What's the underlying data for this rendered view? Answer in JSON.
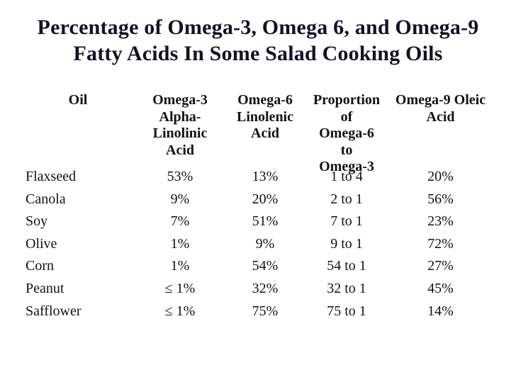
{
  "slide": {
    "title": "Percentage of Omega-3, Omega 6, and Omega-9\nFatty Acids In Some Salad Cooking Oils",
    "title_color": "#121226",
    "background_color": "#ffffff",
    "text_color": "#121212"
  },
  "table": {
    "headers": [
      {
        "label": "Oil"
      },
      {
        "label": "Omega-3\nAlpha-\nLinolinic\nAcid"
      },
      {
        "label": "Omega-6\nLinolenic\nAcid"
      },
      {
        "label": "Proportion\nof\nOmega-6\nto\nOmega-3"
      },
      {
        "label": "Omega-9 Oleic\nAcid"
      }
    ],
    "rows": [
      {
        "oil": "Flaxseed",
        "omega3": "53%",
        "omega6": "13%",
        "proportion": "1 to 4",
        "omega9": "20%"
      },
      {
        "oil": "Canola",
        "omega3": "9%",
        "omega6": "20%",
        "proportion": "2 to 1",
        "omega9": "56%"
      },
      {
        "oil": "Soy",
        "omega3": "7%",
        "omega6": "51%",
        "proportion": "7 to 1",
        "omega9": "23%"
      },
      {
        "oil": "Olive",
        "omega3": "1%",
        "omega6": "9%",
        "proportion": "9 to 1",
        "omega9": "72%"
      },
      {
        "oil": "Corn",
        "omega3": "1%",
        "omega6": "54%",
        "proportion": "54 to 1",
        "omega9": "27%"
      },
      {
        "oil": "Peanut",
        "omega3": "≤ 1%",
        "omega6": "32%",
        "proportion": "32 to 1",
        "omega9": "45%"
      },
      {
        "oil": "Safflower",
        "omega3": "≤ 1%",
        "omega6": "75%",
        "proportion": "75 to 1",
        "omega9": "14%"
      }
    ]
  }
}
